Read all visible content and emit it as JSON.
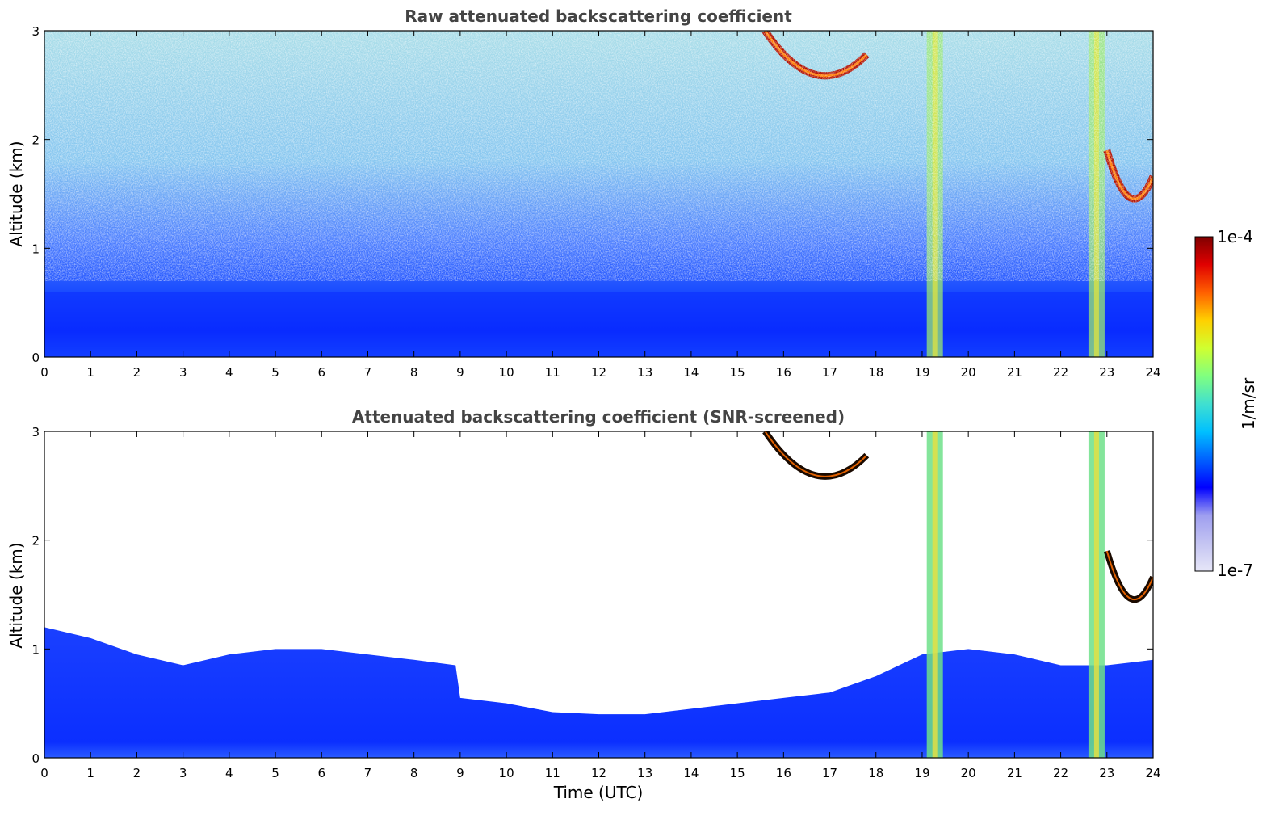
{
  "chart_data": [
    {
      "type": "heatmap",
      "title": "Raw attenuated backscattering coefficient",
      "xlabel": "",
      "ylabel": "Altitude (km)",
      "xlim": [
        0,
        24
      ],
      "ylim": [
        0,
        3
      ],
      "xticks": [
        "0",
        "1",
        "2",
        "3",
        "4",
        "5",
        "6",
        "7",
        "8",
        "9",
        "10",
        "11",
        "12",
        "13",
        "14",
        "15",
        "16",
        "17",
        "18",
        "19",
        "20",
        "21",
        "22",
        "23",
        "24"
      ],
      "yticks": [
        "0",
        "1",
        "2",
        "3"
      ],
      "features": [
        {
          "name": "boundary layer",
          "x": [
            0,
            24
          ],
          "top_km": 0.6
        },
        {
          "name": "vertical plume",
          "x": [
            19.1,
            19.45
          ]
        },
        {
          "name": "vertical plume",
          "x": [
            22.6,
            22.95
          ]
        },
        {
          "name": "cloud",
          "x": [
            15.6,
            17.8
          ],
          "alt_km": [
            2.45,
            3.0
          ]
        },
        {
          "name": "cloud",
          "x": [
            23.0,
            24.0
          ],
          "alt_km": [
            1.3,
            1.9
          ]
        }
      ]
    },
    {
      "type": "heatmap",
      "title": "Attenuated backscattering coefficient (SNR-screened)",
      "xlabel": "Time (UTC)",
      "ylabel": "Altitude (km)",
      "xlim": [
        0,
        24
      ],
      "ylim": [
        0,
        3
      ],
      "xticks": [
        "0",
        "1",
        "2",
        "3",
        "4",
        "5",
        "6",
        "7",
        "8",
        "9",
        "10",
        "11",
        "12",
        "13",
        "14",
        "15",
        "16",
        "17",
        "18",
        "19",
        "20",
        "21",
        "22",
        "23",
        "24"
      ],
      "yticks": [
        "0",
        "1",
        "2",
        "3"
      ],
      "layer_top_km": {
        "x": [
          0,
          1,
          2,
          3,
          4,
          5,
          6,
          7,
          8,
          8.9,
          9,
          10,
          11,
          12,
          13,
          14,
          15,
          16,
          17,
          18,
          19,
          20,
          21,
          22,
          23,
          24
        ],
        "y": [
          1.2,
          1.1,
          0.95,
          0.85,
          0.95,
          1.0,
          1.0,
          0.95,
          0.9,
          0.85,
          0.55,
          0.5,
          0.42,
          0.4,
          0.4,
          0.45,
          0.5,
          0.55,
          0.6,
          0.75,
          0.95,
          1.0,
          0.95,
          0.85,
          0.85,
          0.9
        ]
      }
    }
  ],
  "colorbar": {
    "label": "1/m/sr",
    "max_label": "1e-4",
    "min_label": "1e-7",
    "colors": [
      "#e6e6f8",
      "#c4c4f2",
      "#9e9ef0",
      "#0000ff",
      "#0060ff",
      "#00c0ff",
      "#40e0d0",
      "#80ff80",
      "#d0ff30",
      "#ffd000",
      "#ff6000",
      "#e00000",
      "#800000"
    ]
  }
}
